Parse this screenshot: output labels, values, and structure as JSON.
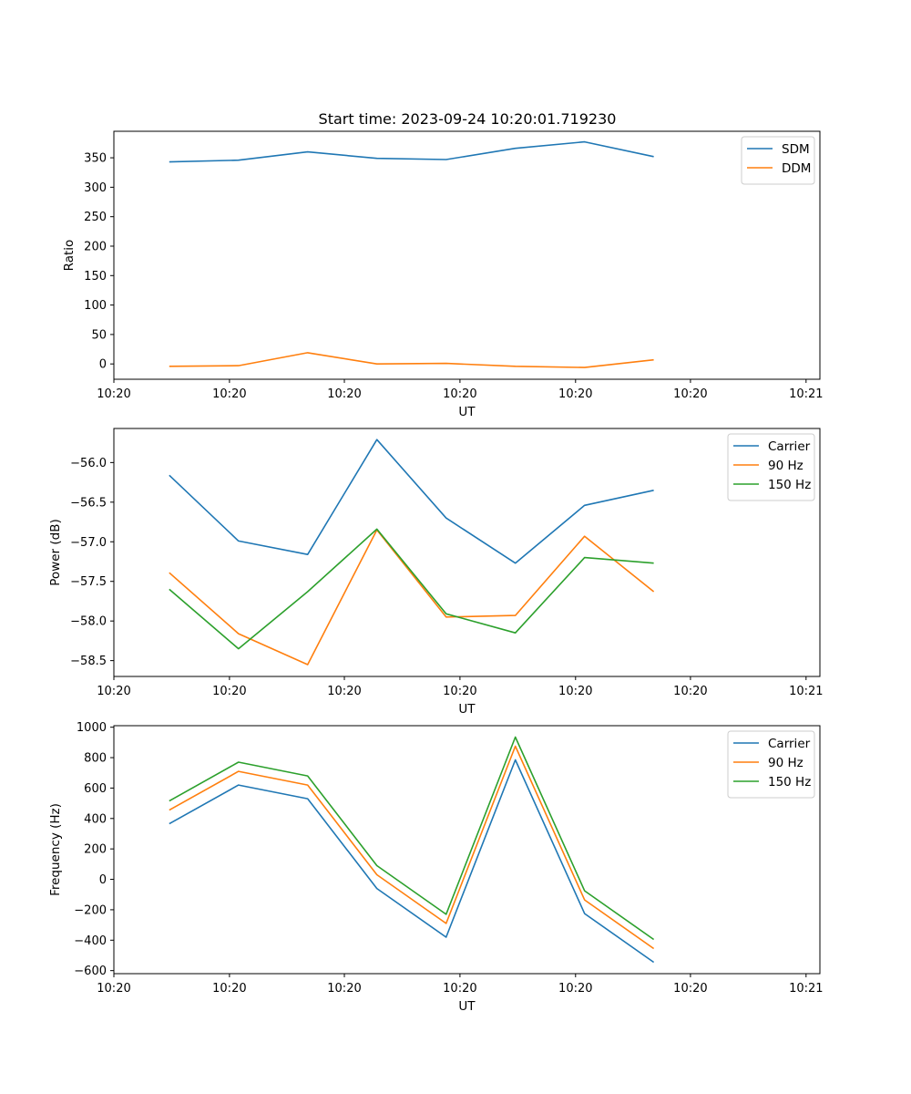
{
  "figure_title": "Start time: 2023-09-24 10:20:01.719230",
  "colors": {
    "c0": "#1f77b4",
    "c1": "#ff7f0e",
    "c2": "#2ca02c"
  },
  "chart_data": [
    {
      "type": "line",
      "title": "Start time: 2023-09-24 10:20:01.719230",
      "xlabel": "UT",
      "ylabel": "Ratio",
      "xlim": [
        -0.8,
        9.4
      ],
      "ylim": [
        -26,
        395
      ],
      "x": [
        0,
        1,
        2,
        3,
        4,
        5,
        6,
        7
      ],
      "xticks": [
        -0.8,
        0.87,
        2.53,
        4.2,
        5.87,
        7.53,
        9.2
      ],
      "xtick_labels": [
        "10:20",
        "10:20",
        "10:20",
        "10:20",
        "10:20",
        "10:20",
        "10:21"
      ],
      "yticks": [
        0,
        50,
        100,
        150,
        200,
        250,
        300,
        350
      ],
      "ytick_labels": [
        "0",
        "50",
        "100",
        "150",
        "200",
        "250",
        "300",
        "350"
      ],
      "legend_position": "top-right",
      "series": [
        {
          "name": "SDM",
          "color": "#1f77b4",
          "values": [
            343,
            346,
            360,
            349,
            347,
            366,
            377,
            352
          ]
        },
        {
          "name": "DDM",
          "color": "#ff7f0e",
          "values": [
            -4,
            -3,
            19,
            0,
            1,
            -4,
            -6,
            7
          ]
        }
      ]
    },
    {
      "type": "line",
      "title": "",
      "xlabel": "UT",
      "ylabel": "Power (dB)",
      "xlim": [
        -0.8,
        9.4
      ],
      "ylim": [
        -58.7,
        -55.57
      ],
      "x": [
        0,
        1,
        2,
        3,
        4,
        5,
        6,
        7
      ],
      "xticks": [
        -0.8,
        0.87,
        2.53,
        4.2,
        5.87,
        7.53,
        9.2
      ],
      "xtick_labels": [
        "10:20",
        "10:20",
        "10:20",
        "10:20",
        "10:20",
        "10:20",
        "10:21"
      ],
      "yticks": [
        -58.5,
        -58.0,
        -57.5,
        -57.0,
        -56.5,
        -56.0
      ],
      "ytick_labels": [
        "−58.5",
        "−58.0",
        "−57.5",
        "−57.0",
        "−56.5",
        "−56.0"
      ],
      "legend_position": "top-right",
      "series": [
        {
          "name": "Carrier",
          "color": "#1f77b4",
          "values": [
            -56.16,
            -56.99,
            -57.16,
            -55.71,
            -56.7,
            -57.27,
            -56.54,
            -56.35
          ]
        },
        {
          "name": "90 Hz",
          "color": "#ff7f0e",
          "values": [
            -57.39,
            -58.16,
            -58.55,
            -56.85,
            -57.95,
            -57.93,
            -56.93,
            -57.63
          ]
        },
        {
          "name": "150 Hz",
          "color": "#2ca02c",
          "values": [
            -57.6,
            -58.35,
            -57.63,
            -56.84,
            -57.91,
            -58.15,
            -57.2,
            -57.27
          ]
        }
      ]
    },
    {
      "type": "line",
      "title": "",
      "xlabel": "UT",
      "ylabel": "Frequency (Hz)",
      "xlim": [
        -0.8,
        9.4
      ],
      "ylim": [
        -620,
        1010
      ],
      "x": [
        0,
        1,
        2,
        3,
        4,
        5,
        6,
        7
      ],
      "xticks": [
        -0.8,
        0.87,
        2.53,
        4.2,
        5.87,
        7.53,
        9.2
      ],
      "xtick_labels": [
        "10:20",
        "10:20",
        "10:20",
        "10:20",
        "10:20",
        "10:20",
        "10:21"
      ],
      "yticks": [
        -600,
        -400,
        -200,
        0,
        200,
        400,
        600,
        800,
        1000
      ],
      "ytick_labels": [
        "−600",
        "−400",
        "−200",
        "0",
        "200",
        "400",
        "600",
        "800",
        "1000"
      ],
      "legend_position": "top-right",
      "series": [
        {
          "name": "Carrier",
          "color": "#1f77b4",
          "values": [
            365,
            620,
            530,
            -60,
            -380,
            785,
            -225,
            -545
          ]
        },
        {
          "name": "90 Hz",
          "color": "#ff7f0e",
          "values": [
            455,
            710,
            620,
            30,
            -290,
            875,
            -135,
            -455
          ]
        },
        {
          "name": "150 Hz",
          "color": "#2ca02c",
          "values": [
            515,
            770,
            680,
            90,
            -230,
            935,
            -75,
            -395
          ]
        }
      ]
    }
  ]
}
